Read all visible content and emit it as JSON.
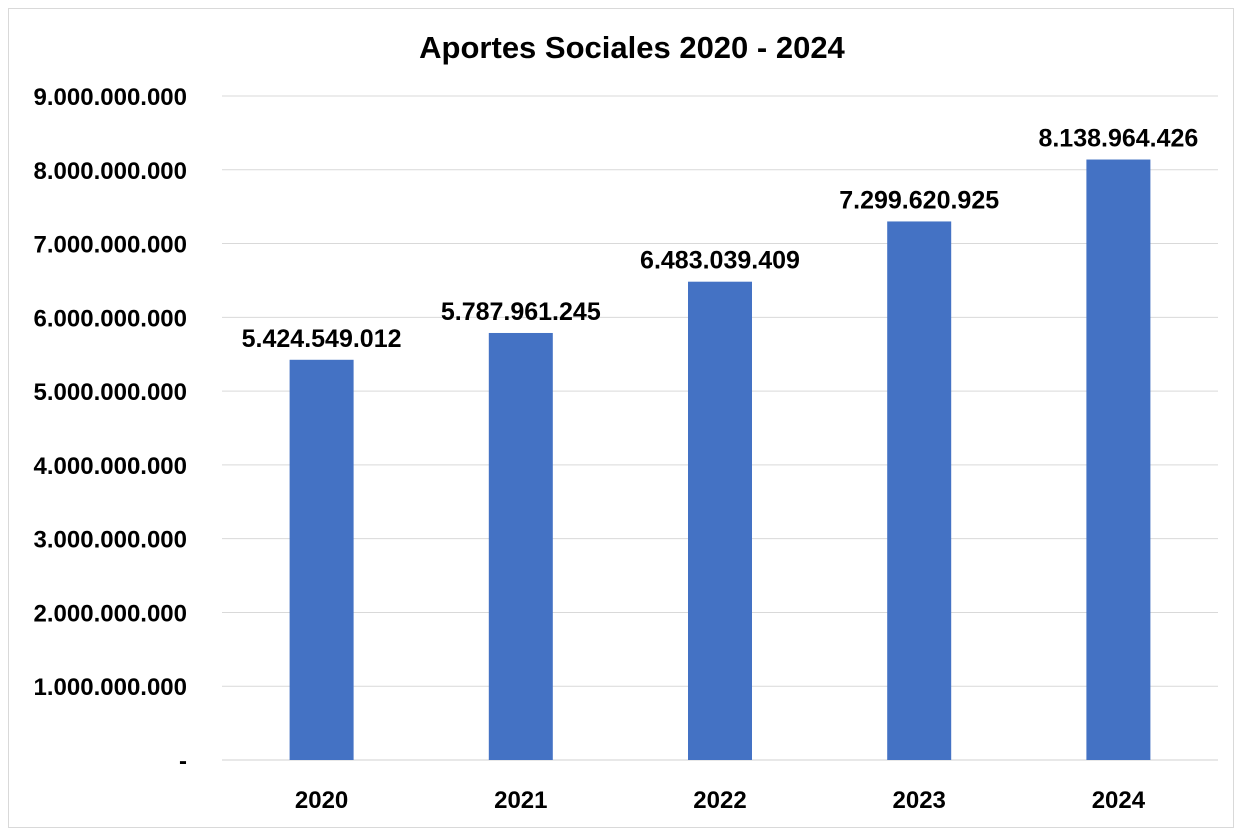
{
  "chart_data": {
    "type": "bar",
    "title": "Aportes Sociales 2020 - 2024",
    "categories": [
      "2020",
      "2021",
      "2022",
      "2023",
      "2024"
    ],
    "values": [
      5424549012,
      5787961245,
      6483039409,
      7299620925,
      8138964426
    ],
    "data_labels": [
      "5.424.549.012",
      "5.787.961.245",
      "6.483.039.409",
      "7.299.620.925",
      "8.138.964.426"
    ],
    "ylim": [
      0,
      9000000000
    ],
    "y_ticks": [
      0,
      1000000000,
      2000000000,
      3000000000,
      4000000000,
      5000000000,
      6000000000,
      7000000000,
      8000000000,
      9000000000
    ],
    "y_tick_labels": [
      "-",
      "1.000.000.000",
      "2.000.000.000",
      "3.000.000.000",
      "4.000.000.000",
      "5.000.000.000",
      "6.000.000.000",
      "7.000.000.000",
      "8.000.000.000",
      "9.000.000.000"
    ],
    "xlabel": "",
    "ylabel": "",
    "grid": true,
    "legend": "none",
    "bar_color": "#4472c4"
  }
}
